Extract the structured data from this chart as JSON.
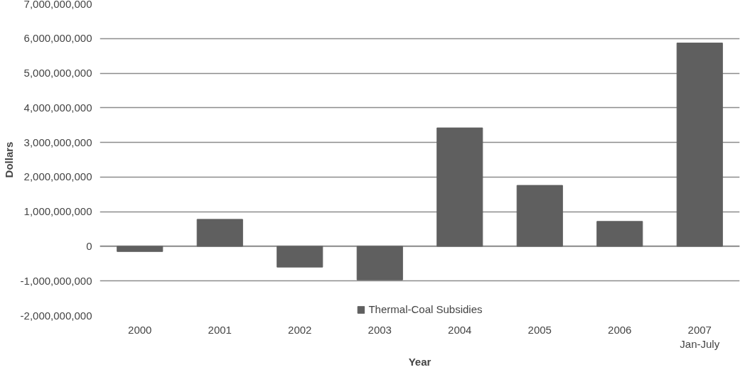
{
  "chart_data": {
    "type": "bar",
    "xlabel": "Year",
    "ylabel": "Dollars",
    "categories": [
      "2000",
      "2001",
      "2002",
      "2003",
      "2004",
      "2005",
      "2006",
      "2007\nJan-July"
    ],
    "series": [
      {
        "name": "Thermal-Coal Subsidies",
        "color": "#5f5f5f",
        "values": [
          -150000000,
          780000000,
          -600000000,
          -970000000,
          3420000000,
          1760000000,
          720000000,
          5870000000
        ]
      }
    ],
    "ylim": [
      -2000000000,
      7000000000
    ],
    "yticks": [
      {
        "value": -2000000000,
        "label": "-2,000,000,000"
      },
      {
        "value": -1000000000,
        "label": "-1,000,000,000"
      },
      0,
      {
        "value": 1000000000,
        "label": "1,000,000,000"
      },
      {
        "value": 2000000000,
        "label": "2,000,000,000"
      },
      {
        "value": 3000000000,
        "label": "3,000,000,000"
      },
      {
        "value": 4000000000,
        "label": "4,000,000,000"
      },
      {
        "value": 5000000000,
        "label": "5,000,000,000"
      },
      {
        "value": 6000000000,
        "label": "6,000,000,000"
      },
      {
        "value": 7000000000,
        "label": "7,000,000,000"
      }
    ],
    "grid": "y",
    "legend": "bottom"
  }
}
